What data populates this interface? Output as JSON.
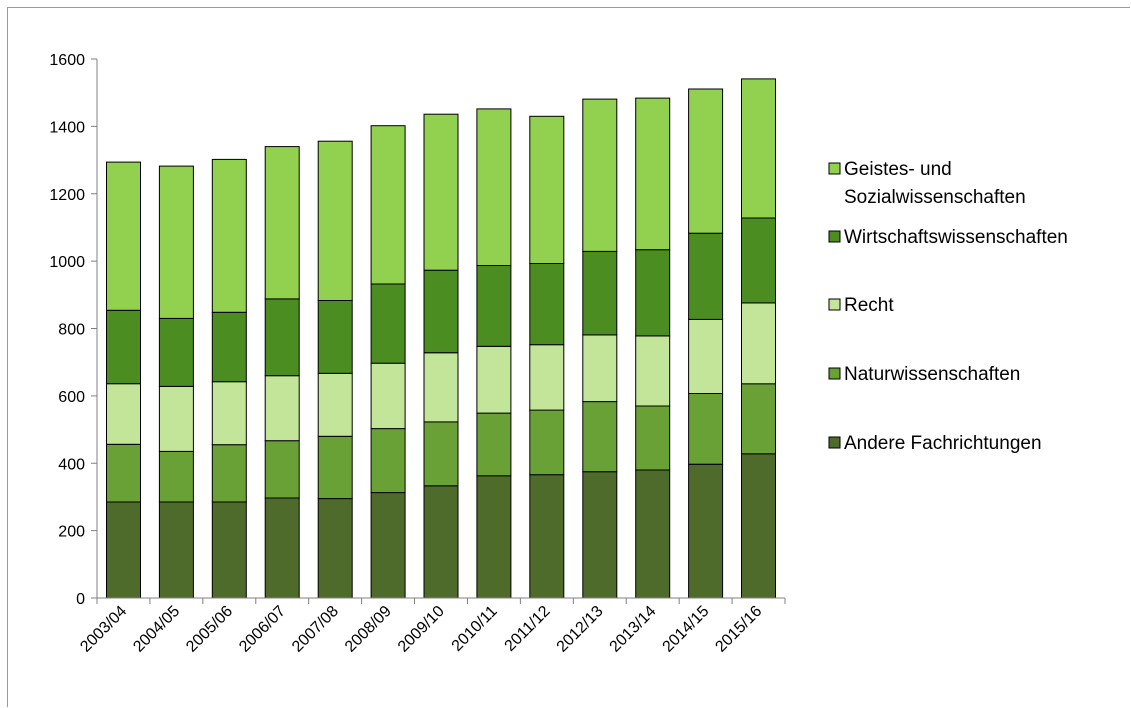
{
  "chart_data": {
    "type": "bar",
    "stacked": true,
    "categories": [
      "2003/04",
      "2004/05",
      "2005/06",
      "2006/07",
      "2007/08",
      "2008/09",
      "2009/10",
      "2010/11",
      "2011/12",
      "2012/13",
      "2013/14",
      "2014/15",
      "2015/16"
    ],
    "series": [
      {
        "name": "Andere Fachrichtungen",
        "color": "#4e6b2b",
        "values": [
          285,
          285,
          285,
          297,
          295,
          313,
          333,
          363,
          366,
          375,
          380,
          397,
          428
        ]
      },
      {
        "name": "Naturwissenschaften",
        "color": "#6aa136",
        "values": [
          171,
          150,
          170,
          170,
          185,
          190,
          190,
          186,
          192,
          208,
          190,
          210,
          208
        ]
      },
      {
        "name": "Recht",
        "color": "#c3e59a",
        "values": [
          180,
          193,
          187,
          193,
          187,
          194,
          205,
          198,
          194,
          198,
          208,
          220,
          240
        ]
      },
      {
        "name": "Wirtschaftswissenschaften",
        "color": "#4c8d22",
        "values": [
          218,
          202,
          206,
          228,
          216,
          235,
          245,
          240,
          241,
          248,
          256,
          256,
          252
        ]
      },
      {
        "name": "Geistes- und Sozialwissenschaften",
        "color": "#92d050",
        "values": [
          440,
          452,
          454,
          452,
          473,
          470,
          463,
          465,
          437,
          452,
          450,
          428,
          413
        ]
      }
    ],
    "yticks": [
      "0",
      "200",
      "400",
      "600",
      "800",
      "1000",
      "1200",
      "1400",
      "1600"
    ],
    "ylim": [
      0,
      1600
    ],
    "grid": false,
    "legend_position": "right",
    "legend_order": [
      "Geistes- und Sozialwissenschaften",
      "Wirtschaftswissenschaften",
      "Recht",
      "Naturwissenschaften",
      "Andere Fachrichtungen"
    ]
  }
}
